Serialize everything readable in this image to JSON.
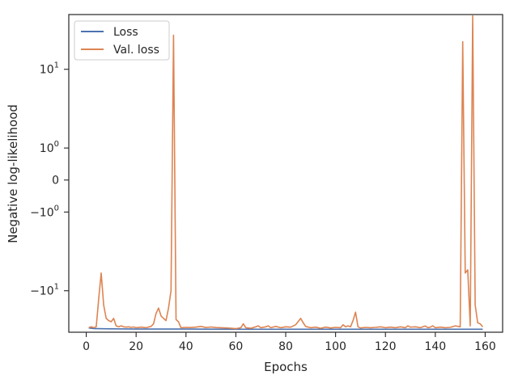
{
  "chart_data": {
    "type": "line",
    "title": "",
    "xlabel": "Epochs",
    "ylabel": "Negative log-likelihood",
    "xlim": [
      -7,
      167
    ],
    "ylim": [
      -26,
      35
    ],
    "yscale": "symlog",
    "grid": false,
    "legend_position": "top-left",
    "x_ticks": [
      0,
      20,
      40,
      60,
      80,
      100,
      120,
      140,
      160
    ],
    "y_ticks": [
      {
        "value": 10,
        "base": "10",
        "exp": "1"
      },
      {
        "value": 1,
        "base": "10",
        "exp": "0"
      },
      {
        "value": 0,
        "base": "0",
        "exp": ""
      },
      {
        "value": -1,
        "base": "−10",
        "exp": "0"
      },
      {
        "value": -10,
        "base": "−10",
        "exp": "1"
      }
    ],
    "series": [
      {
        "name": "Loss",
        "color": "#4c72b0",
        "x": [
          1,
          2,
          3,
          4,
          5,
          10,
          20,
          40,
          60,
          80,
          100,
          120,
          140,
          159
        ],
        "y": [
          -23.6,
          -23.8,
          -23.9,
          -24.0,
          -24.0,
          -24.1,
          -24.2,
          -24.2,
          -24.3,
          -24.3,
          -24.3,
          -24.3,
          -24.3,
          -24.3
        ]
      },
      {
        "name": "Val. loss",
        "color": "#dd8452",
        "x": [
          1,
          2,
          3,
          4,
          5,
          6,
          7,
          8,
          9,
          10,
          11,
          12,
          13,
          14,
          15,
          16,
          17,
          18,
          19,
          20,
          22,
          24,
          26,
          27,
          28,
          29,
          30,
          31,
          32,
          33,
          34,
          35,
          36,
          37,
          38,
          40,
          42,
          44,
          46,
          48,
          50,
          52,
          54,
          56,
          58,
          60,
          62,
          63,
          64,
          66,
          68,
          69,
          70,
          72,
          73,
          74,
          76,
          78,
          80,
          82,
          84,
          86,
          87,
          88,
          90,
          92,
          94,
          96,
          98,
          100,
          102,
          103,
          104,
          105,
          106,
          107,
          108,
          109,
          110,
          112,
          114,
          116,
          118,
          120,
          122,
          124,
          126,
          128,
          129,
          130,
          132,
          134,
          136,
          137,
          138,
          139,
          140,
          142,
          144,
          146,
          148,
          150,
          151,
          152,
          153,
          154,
          155,
          156,
          157,
          158,
          159
        ],
        "y": [
          -23.5,
          -23.0,
          -23.5,
          -23.0,
          -12.0,
          -6.5,
          -14.0,
          -19.0,
          -20.0,
          -20.5,
          -19.0,
          -22.5,
          -23.0,
          -22.5,
          -23.0,
          -23.2,
          -23.0,
          -23.3,
          -23.1,
          -23.5,
          -23.2,
          -23.5,
          -22.8,
          -21.5,
          -17.0,
          -15.0,
          -18.0,
          -19.0,
          -20.0,
          -15.0,
          -10.0,
          22.0,
          -19.5,
          -20.5,
          -23.5,
          -23.3,
          -23.4,
          -23.2,
          -22.8,
          -23.4,
          -23.1,
          -23.4,
          -23.5,
          -23.6,
          -23.8,
          -24.0,
          -23.5,
          -21.5,
          -23.5,
          -23.8,
          -23.0,
          -22.5,
          -23.5,
          -23.0,
          -22.5,
          -23.5,
          -22.8,
          -23.5,
          -23.0,
          -23.2,
          -22.0,
          -19.0,
          -21.0,
          -22.8,
          -23.5,
          -23.2,
          -23.8,
          -23.2,
          -23.6,
          -23.3,
          -23.5,
          -22.0,
          -23.0,
          -22.5,
          -23.0,
          -20.0,
          -16.5,
          -23.0,
          -23.6,
          -23.3,
          -23.5,
          -23.3,
          -23.0,
          -23.5,
          -23.2,
          -23.5,
          -23.0,
          -23.5,
          -22.5,
          -23.2,
          -23.0,
          -23.5,
          -22.6,
          -23.5,
          -23.2,
          -22.5,
          -23.5,
          -23.2,
          -23.5,
          -23.3,
          -22.5,
          -23.0,
          19.0,
          -6.5,
          -6.0,
          -22.5,
          34.0,
          -14.0,
          -21.0,
          -21.5,
          -23.0
        ]
      }
    ]
  }
}
